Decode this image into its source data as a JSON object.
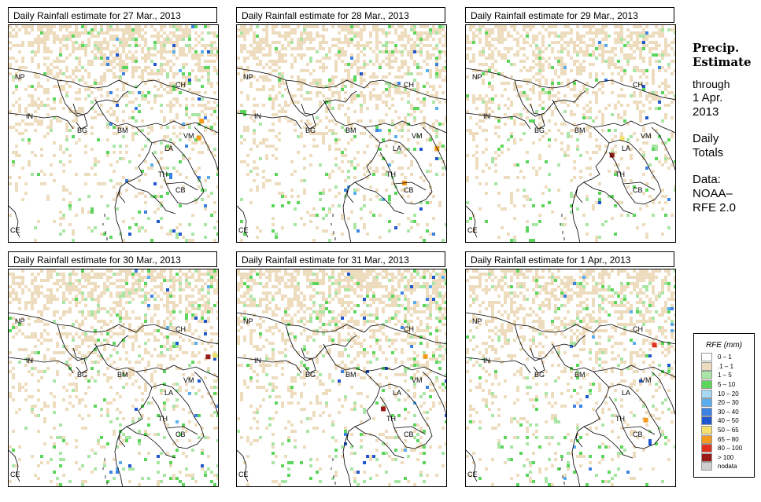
{
  "panels": [
    {
      "title": "Daily Rainfall estimate for  27 Mar., 2013",
      "seed": 27,
      "wet": 0.55
    },
    {
      "title": "Daily Rainfall estimate for  28 Mar., 2013",
      "seed": 28,
      "wet": 0.5
    },
    {
      "title": "Daily Rainfall estimate for  29 Mar., 2013",
      "seed": 29,
      "wet": 0.35
    },
    {
      "title": "Daily Rainfall estimate for  30 Mar., 2013",
      "seed": 30,
      "wet": 0.6
    },
    {
      "title": "Daily Rainfall estimate for  31 Mar., 2013",
      "seed": 31,
      "wet": 0.65
    },
    {
      "title": "Daily Rainfall estimate for  1 Apr., 2013",
      "seed": 1,
      "wet": 0.6
    }
  ],
  "country_labels": [
    "NP",
    "CH",
    "IN",
    "BG",
    "BM",
    "VM",
    "LA",
    "TH",
    "CB",
    "CE"
  ],
  "side": {
    "title1": "Precip.",
    "title2": "Estimate",
    "through": "through",
    "date1": "1 Apr.",
    "date2": "2013",
    "daily1": "Daily",
    "daily2": "Totals",
    "data1": "Data:",
    "data2": "NOAA–",
    "data3": "RFE 2.0"
  },
  "legend": {
    "title": "RFE (mm)",
    "classes": [
      {
        "label": "0 – 1",
        "color": "#ffffff"
      },
      {
        "label": ".1 – 1",
        "color": "#eedcbe"
      },
      {
        "label": "1 – 5",
        "color": "#a9e6a5"
      },
      {
        "label": "5 – 10",
        "color": "#5bd65b"
      },
      {
        "label": "10 – 20",
        "color": "#a6d8f5"
      },
      {
        "label": "20 – 30",
        "color": "#5aaeed"
      },
      {
        "label": "30 – 40",
        "color": "#3c82e3"
      },
      {
        "label": "40 – 50",
        "color": "#1f57d0"
      },
      {
        "label": "50 – 65",
        "color": "#f4e06a"
      },
      {
        "label": "65 – 80",
        "color": "#f49b1e"
      },
      {
        "label": "80 – 100",
        "color": "#e0301e"
      },
      {
        "label": "> 100",
        "color": "#9a1a18"
      },
      {
        "label": "nodata",
        "color": "#cfcfcf"
      }
    ]
  }
}
